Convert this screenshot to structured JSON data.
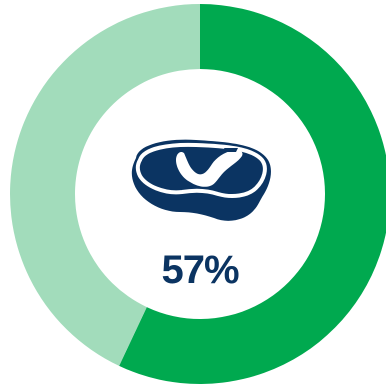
{
  "chart_data": {
    "type": "pie",
    "donut": true,
    "series": [
      {
        "value": 57,
        "color": "#00a94f"
      },
      {
        "value": 43,
        "color": "#a2dcbb"
      }
    ],
    "center_label": "57%",
    "center_icon": "steak-icon",
    "colors": {
      "primary": "#00a94f",
      "remainder": "#a2dcbb",
      "text": "#0b3462",
      "icon": "#0b3462"
    }
  }
}
